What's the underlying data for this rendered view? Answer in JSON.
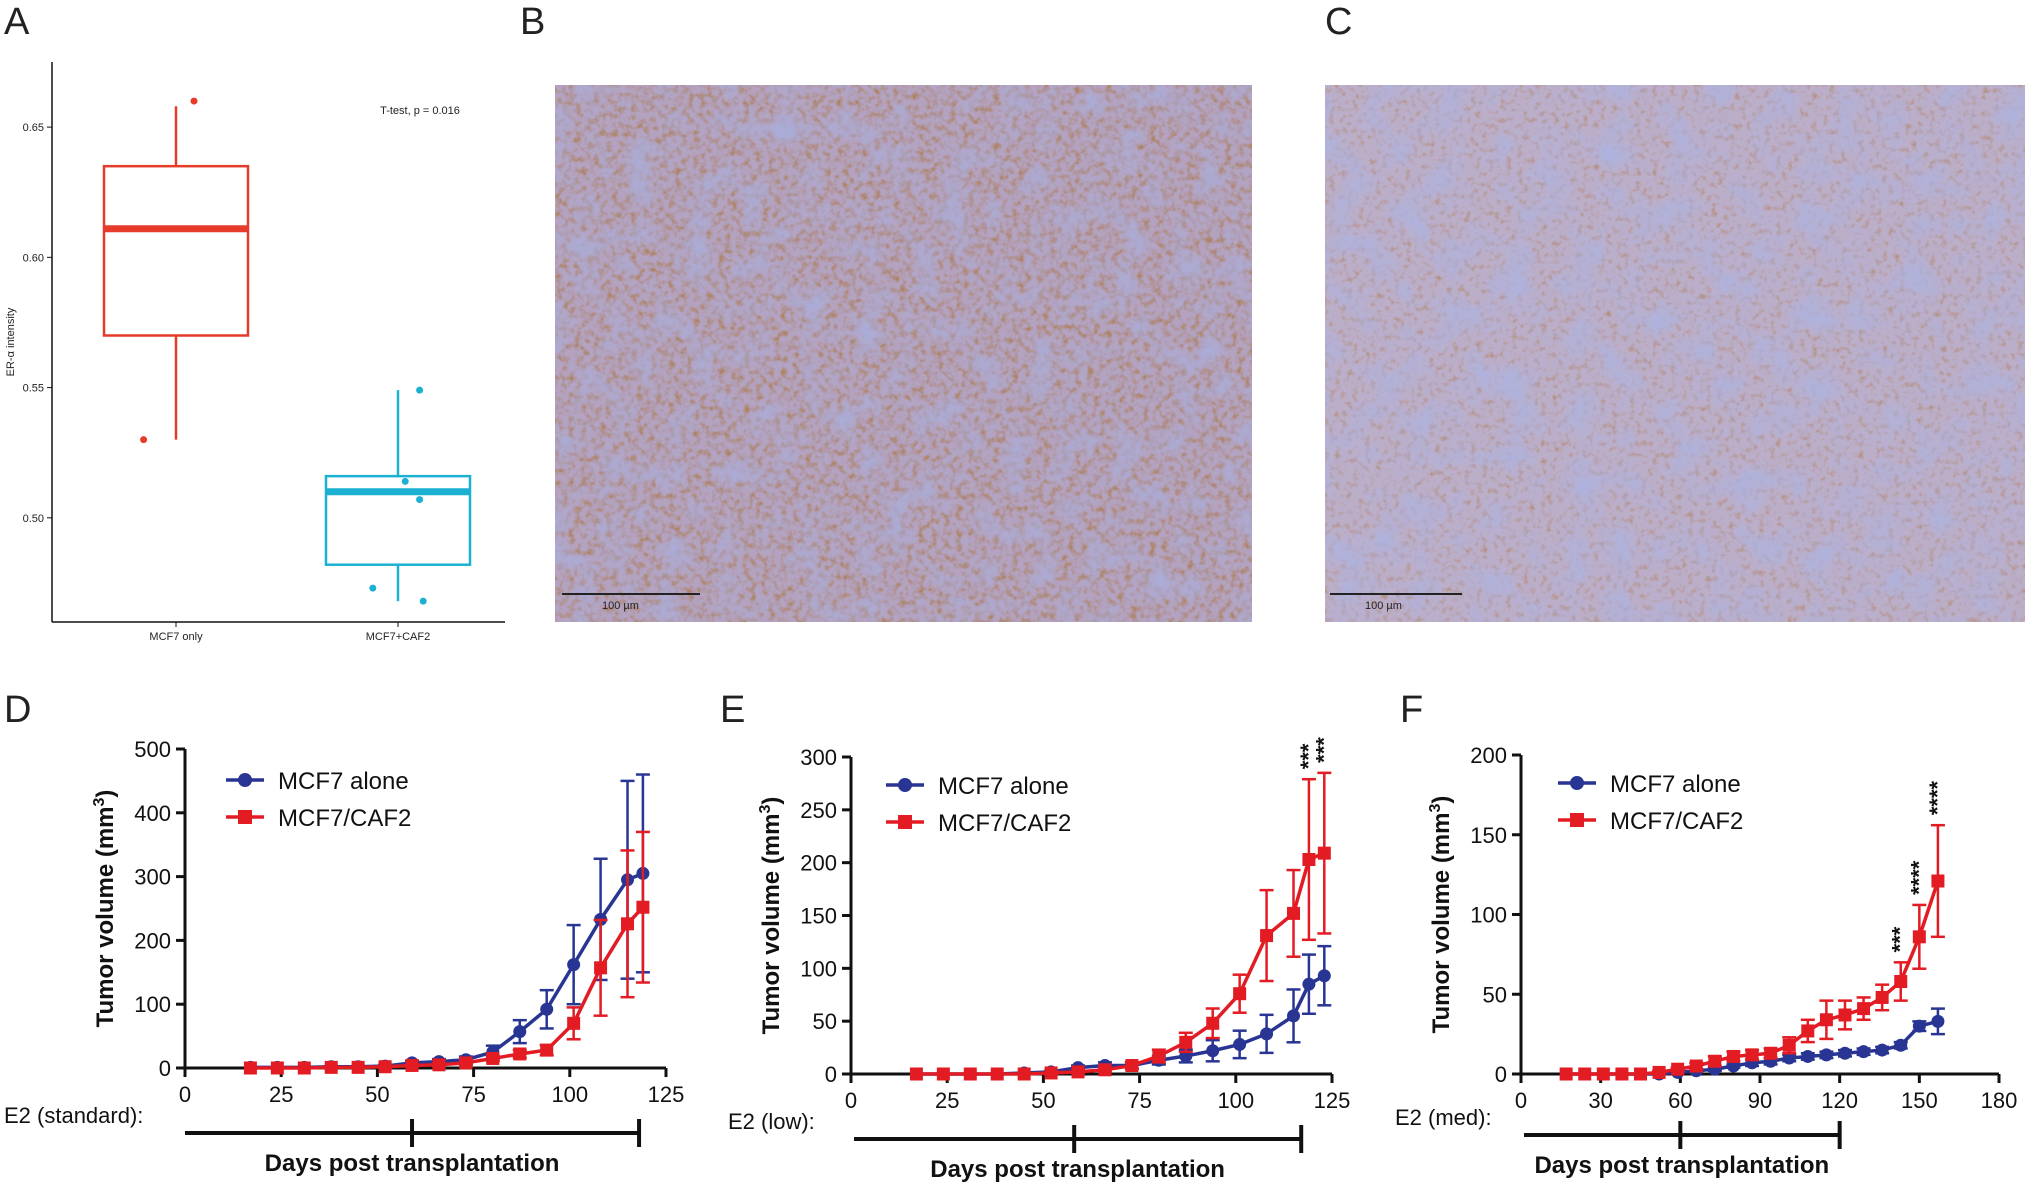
{
  "panels": {
    "A": "A",
    "B": "B",
    "C": "C",
    "D": "D",
    "E": "E",
    "F": "F"
  },
  "colors": {
    "red": "#e63b2a",
    "cyan": "#1cb1d2",
    "navy": "#283593",
    "crimson": "#e31b23",
    "black": "#111111"
  },
  "chart_data": [
    {
      "id": "A",
      "type": "box",
      "ylabel": "ER-α intensity",
      "categories": [
        "MCF7 only",
        "MCF7+CAF2"
      ],
      "ylim": [
        0.46,
        0.675
      ],
      "yticks": [
        0.5,
        0.55,
        0.6,
        0.65
      ],
      "ytick_labels": [
        "0.50",
        "0.55",
        "0.60",
        "0.65"
      ],
      "annotation": "T-test, p = 0.016",
      "boxes": [
        {
          "q1": 0.57,
          "median": 0.611,
          "q3": 0.635,
          "whisker_low": 0.53,
          "whisker_high": 0.658,
          "points": [
            [
              -0.45,
              0.53
            ],
            [
              0.25,
              0.66
            ]
          ]
        },
        {
          "q1": 0.482,
          "median": 0.51,
          "q3": 0.516,
          "whisker_low": 0.468,
          "whisker_high": 0.549,
          "points": [
            [
              -0.35,
              0.473
            ],
            [
              0.1,
              0.514
            ],
            [
              0.3,
              0.507
            ],
            [
              0.3,
              0.549
            ],
            [
              0.35,
              0.468
            ]
          ]
        }
      ]
    },
    {
      "id": "D",
      "type": "line",
      "ylabel": "Tumor volume (mm",
      "ylabel_sup": "3",
      "ylabel_close": ")",
      "xlabel": "Days post transplantation",
      "e2_label": "E2 (standard):",
      "xlim": [
        0,
        125
      ],
      "ylim": [
        0,
        500
      ],
      "xticks": [
        0,
        25,
        50,
        75,
        100,
        125
      ],
      "yticks": [
        0,
        100,
        200,
        300,
        400,
        500
      ],
      "e2_segments": [
        [
          0,
          59
        ],
        [
          59,
          118
        ]
      ],
      "series": [
        {
          "name": "MCF7 alone",
          "marker": "circle",
          "x": [
            17,
            24,
            31,
            38,
            45,
            52,
            59,
            66,
            73,
            80,
            87,
            94,
            101,
            108,
            115,
            119
          ],
          "y": [
            1,
            1,
            1,
            2,
            2,
            3,
            8,
            10,
            13,
            25,
            57,
            92,
            162,
            233,
            295,
            305
          ],
          "err": [
            0,
            0,
            0,
            1,
            1,
            2,
            3,
            4,
            5,
            10,
            18,
            30,
            62,
            95,
            155,
            155
          ]
        },
        {
          "name": "MCF7/CAF2",
          "marker": "square",
          "x": [
            17,
            24,
            31,
            38,
            45,
            52,
            59,
            66,
            73,
            80,
            87,
            94,
            101,
            108,
            115,
            119
          ],
          "y": [
            0,
            0,
            0,
            1,
            1,
            2,
            4,
            5,
            8,
            15,
            22,
            28,
            70,
            157,
            226,
            252
          ],
          "err": [
            0,
            0,
            0,
            0,
            1,
            1,
            2,
            2,
            3,
            4,
            6,
            8,
            25,
            75,
            115,
            118
          ]
        }
      ],
      "stars": []
    },
    {
      "id": "E",
      "type": "line",
      "ylabel": "Tumor volume (mm",
      "ylabel_sup": "3",
      "ylabel_close": ")",
      "xlabel": "Days post transplantation",
      "e2_label": "E2 (low):",
      "xlim": [
        0,
        125
      ],
      "ylim": [
        0,
        300
      ],
      "xticks": [
        0,
        25,
        50,
        75,
        100,
        125
      ],
      "yticks": [
        0,
        50,
        100,
        150,
        200,
        250,
        300
      ],
      "e2_segments": [
        [
          0,
          58
        ],
        [
          58,
          117
        ]
      ],
      "series": [
        {
          "name": "MCF7 alone",
          "marker": "circle",
          "x": [
            17,
            24,
            31,
            38,
            45,
            52,
            59,
            66,
            73,
            80,
            87,
            94,
            101,
            108,
            115,
            119,
            123
          ],
          "y": [
            0,
            0,
            0,
            0,
            1,
            2,
            6,
            8,
            8,
            13,
            17,
            22,
            28,
            38,
            55,
            85,
            93
          ],
          "err": [
            0,
            0,
            0,
            0,
            0,
            1,
            2,
            3,
            3,
            4,
            6,
            10,
            13,
            18,
            25,
            28,
            28
          ]
        },
        {
          "name": "MCF7/CAF2",
          "marker": "square",
          "x": [
            17,
            24,
            31,
            38,
            45,
            52,
            59,
            66,
            73,
            80,
            87,
            94,
            101,
            108,
            115,
            119,
            123
          ],
          "y": [
            0,
            0,
            0,
            0,
            0,
            1,
            2,
            4,
            8,
            17,
            30,
            48,
            76,
            131,
            152,
            203,
            209
          ],
          "err": [
            0,
            0,
            0,
            0,
            0,
            1,
            1,
            2,
            3,
            6,
            9,
            14,
            18,
            43,
            41,
            76,
            76
          ]
        }
      ],
      "stars": [
        {
          "x": 119,
          "text": "***"
        },
        {
          "x": 123,
          "text": "***"
        }
      ]
    },
    {
      "id": "F",
      "type": "line",
      "ylabel": "Tumor volume (mm",
      "ylabel_sup": "3",
      "ylabel_close": ")",
      "xlabel": "Days post transplantation",
      "e2_label": "E2 (med):",
      "xlim": [
        0,
        180
      ],
      "ylim": [
        0,
        200
      ],
      "xticks": [
        0,
        30,
        60,
        90,
        120,
        150,
        180
      ],
      "yticks": [
        0,
        50,
        100,
        150,
        200
      ],
      "e2_segments": [
        [
          0,
          60
        ],
        [
          60,
          120
        ]
      ],
      "series": [
        {
          "name": "MCF7 alone",
          "marker": "circle",
          "x": [
            17,
            24,
            31,
            38,
            45,
            52,
            59,
            66,
            73,
            80,
            87,
            94,
            101,
            108,
            115,
            122,
            129,
            136,
            143,
            150,
            157
          ],
          "y": [
            0,
            0,
            0,
            0,
            0,
            0,
            1,
            2,
            3,
            5,
            7,
            8,
            10,
            11,
            12,
            13,
            14,
            15,
            18,
            30,
            33
          ],
          "err": [
            0,
            0,
            0,
            0,
            0,
            0,
            0,
            1,
            1,
            1,
            2,
            2,
            2,
            2,
            2,
            2,
            2,
            2,
            2,
            3,
            8
          ]
        },
        {
          "name": "MCF7/CAF2",
          "marker": "square",
          "x": [
            17,
            24,
            31,
            38,
            45,
            52,
            59,
            66,
            73,
            80,
            87,
            94,
            101,
            108,
            115,
            122,
            129,
            136,
            143,
            150,
            157
          ],
          "y": [
            0,
            0,
            0,
            0,
            0,
            1,
            3,
            5,
            8,
            11,
            12,
            13,
            18,
            27,
            34,
            37,
            41,
            48,
            58,
            86,
            121
          ],
          "err": [
            0,
            0,
            0,
            0,
            0,
            1,
            1,
            2,
            3,
            3,
            3,
            3,
            5,
            7,
            12,
            9,
            7,
            8,
            12,
            20,
            35
          ]
        }
      ],
      "stars": [
        {
          "x": 143,
          "text": "***"
        },
        {
          "x": 150,
          "text": "****"
        },
        {
          "x": 157,
          "text": "****"
        }
      ]
    }
  ],
  "micrographs": [
    {
      "id": "B",
      "scale_bar": "100 µm"
    },
    {
      "id": "C",
      "scale_bar": "100 µm"
    }
  ]
}
